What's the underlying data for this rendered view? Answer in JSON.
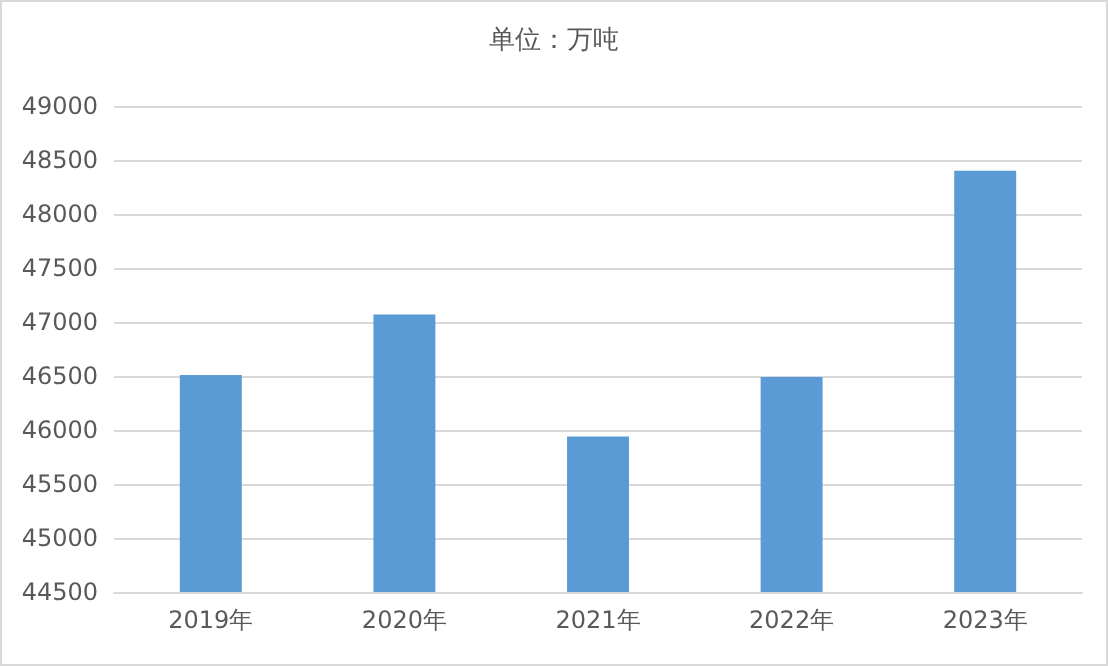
{
  "chart_data": {
    "type": "bar",
    "title": "单位：万吨",
    "categories": [
      "2019年",
      "2020年",
      "2021年",
      "2022年",
      "2023年"
    ],
    "values": [
      46510,
      47070,
      45940,
      46490,
      48400
    ],
    "color": "#5b9bd5",
    "ylim": [
      44500,
      49000
    ],
    "yticks": [
      44500,
      45000,
      45500,
      46000,
      46500,
      47000,
      47500,
      48000,
      48500,
      49000
    ],
    "grid": "y"
  }
}
